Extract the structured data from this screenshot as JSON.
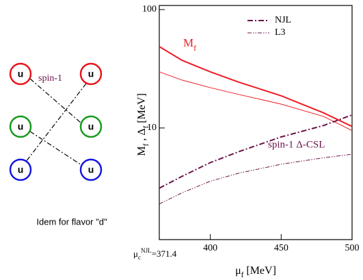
{
  "diagram": {
    "quark": "u",
    "spin_label": "spin-1",
    "caption": "Idem for flavor \"d\""
  },
  "chart_data": {
    "type": "line",
    "x_label": [
      "μ",
      "f",
      " [MeV]"
    ],
    "y_label": [
      "M",
      "f",
      " , Δ",
      "f",
      " [MeV]"
    ],
    "annotations": {
      "mass": [
        "M",
        "f"
      ],
      "gap": "spin-1 Δ-CSL",
      "critical": [
        "μ",
        "c",
        "NJL",
        "=371.4"
      ]
    },
    "x": [
      364,
      380,
      400,
      420,
      450,
      480,
      500
    ],
    "series": [
      {
        "color": "#ee1c24",
        "dash": "none",
        "width": 2,
        "values": [
          48.7,
          37.3,
          29.8,
          24.4,
          18.7,
          13.4,
          10.3
        ]
      },
      {
        "color": "#ee1c24",
        "dash": "none",
        "width": 1,
        "values": [
          29.8,
          25.4,
          21.9,
          19.2,
          15.9,
          12.5,
          9.5
        ]
      },
      {
        "name": "NJL",
        "color": "#6b1048",
        "dash": "8 3 2 3",
        "width": 2,
        "values": [
          3.1,
          3.9,
          5.1,
          6.3,
          8.4,
          10.5,
          12.9
        ]
      },
      {
        "name": "L3",
        "color": "#6b1048",
        "dash": "6 2 1.5 2 1.5 2",
        "width": 1,
        "values": [
          2.28,
          2.83,
          3.55,
          4.15,
          4.94,
          5.6,
          6.0
        ]
      }
    ],
    "xlim": [
      364,
      500
    ],
    "ylim": [
      1.14,
      100
    ],
    "log_y": true,
    "xticks": [
      400,
      450,
      500
    ],
    "yticks": [
      10,
      100
    ],
    "legend": "upper right"
  }
}
